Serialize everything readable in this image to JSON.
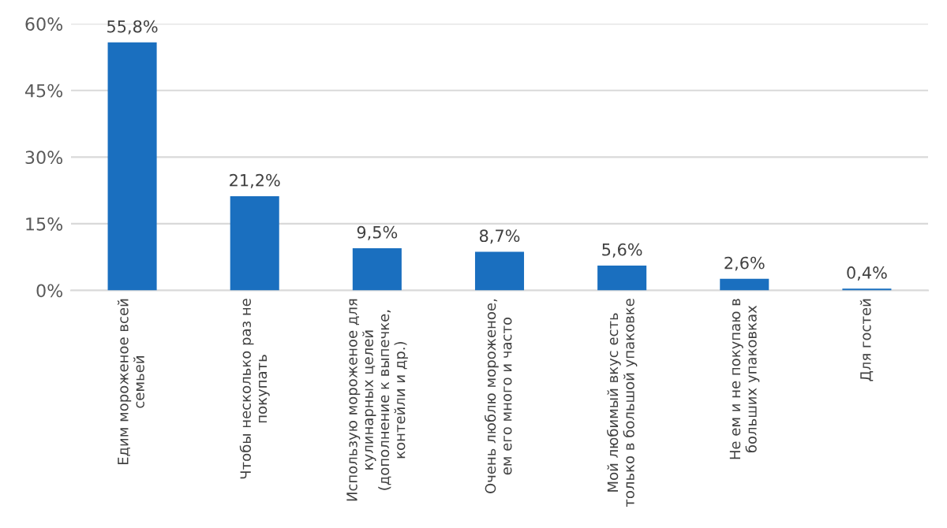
{
  "chart_data": {
    "type": "bar",
    "categories": [
      "Едим мороженое всей\nсемьей",
      "Чтобы несколько раз не\nпокупать",
      "Использую мороженое для\nкулинарных целей\n(дополнение к выпечке,\nконтейли и др.)",
      "Очень люблю мороженое,\nем его много и часто",
      "Мой любимый вкус есть\nтолько в большой упаковке",
      "Не ем и не покупаю в\nбольших упаковках",
      "Для гостей"
    ],
    "values": [
      55.8,
      21.2,
      9.5,
      8.7,
      5.6,
      2.6,
      0.4
    ],
    "value_labels": [
      "55,8%",
      "21,2%",
      "9,5%",
      "8,7%",
      "5,6%",
      "2,6%",
      "0,4%"
    ],
    "color": "#1a6fbf",
    "ylim": [
      0,
      60
    ],
    "yticks": [
      {
        "value": 0,
        "label": "0%"
      },
      {
        "value": 15,
        "label": "15%"
      },
      {
        "value": 30,
        "label": "30%"
      },
      {
        "value": 45,
        "label": "45%"
      },
      {
        "value": 60,
        "label": "60%"
      }
    ],
    "grid": "y"
  }
}
